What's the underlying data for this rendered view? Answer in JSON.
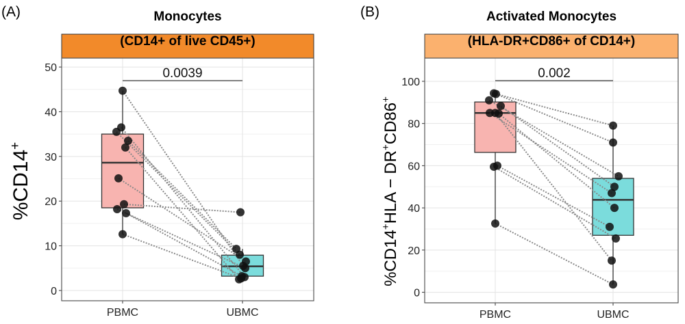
{
  "chart_data": [
    {
      "type": "box",
      "panel_label": "(A)",
      "title_line1": "Monocytes",
      "title_line2": "(CD14+ of live CD45+)",
      "header_color": "#F28A2A",
      "ylabel_main": "%CD14",
      "ylabel_sup": "+",
      "categories": [
        "PBMC",
        "UBMC"
      ],
      "category_colors": [
        "#F8B4B0",
        "#7BDCDC"
      ],
      "ylim": [
        -2.3,
        52
      ],
      "yticks": [
        0,
        10,
        20,
        30,
        40,
        50
      ],
      "grid": true,
      "boxes": [
        {
          "min": 12.6,
          "q1": 18.5,
          "median": 28.6,
          "q3": 35.0,
          "max": 44.7
        },
        {
          "min": 2.5,
          "q1": 3.2,
          "median": 5.4,
          "q3": 7.9,
          "max": 9.3
        }
      ],
      "pairs": [
        [
          44.7,
          5.5
        ],
        [
          36.5,
          3.0
        ],
        [
          35.5,
          8.0
        ],
        [
          33.5,
          9.3
        ],
        [
          32.0,
          2.5
        ],
        [
          25.1,
          6.5
        ],
        [
          19.3,
          17.5
        ],
        [
          18.2,
          5.0
        ],
        [
          17.3,
          3.2
        ],
        [
          12.6,
          2.7
        ]
      ],
      "p_value": "0.0039"
    },
    {
      "type": "box",
      "panel_label": "(B)",
      "title_line1": "Activated Monocytes",
      "title_line2": "(HLA-DR+CD86+ of CD14+)",
      "header_color": "#FBB16E",
      "ylabel_parts": [
        "%CD14",
        "+",
        "HLA − DR",
        "+",
        "CD86",
        "+"
      ],
      "categories": [
        "PBMC",
        "UBMC"
      ],
      "category_colors": [
        "#F8B4B0",
        "#7BDCDC"
      ],
      "ylim": [
        -5,
        111
      ],
      "yticks": [
        0,
        20,
        40,
        60,
        80,
        100
      ],
      "grid": true,
      "boxes": [
        {
          "min": 32.6,
          "q1": 66.3,
          "median": 85.0,
          "q3": 90.2,
          "max": 94.3
        },
        {
          "min": 3.7,
          "q1": 27.0,
          "median": 43.8,
          "q3": 54.0,
          "max": 79.0
        }
      ],
      "pairs": [
        [
          94.3,
          79.0
        ],
        [
          94.0,
          71.0
        ],
        [
          91.0,
          55.0
        ],
        [
          88.3,
          50.0
        ],
        [
          85.0,
          47.0
        ],
        [
          84.7,
          40.0
        ],
        [
          85.0,
          15.0
        ],
        [
          60.0,
          31.0
        ],
        [
          59.5,
          25.5
        ],
        [
          32.6,
          3.7
        ]
      ],
      "p_value": "0.002"
    }
  ]
}
